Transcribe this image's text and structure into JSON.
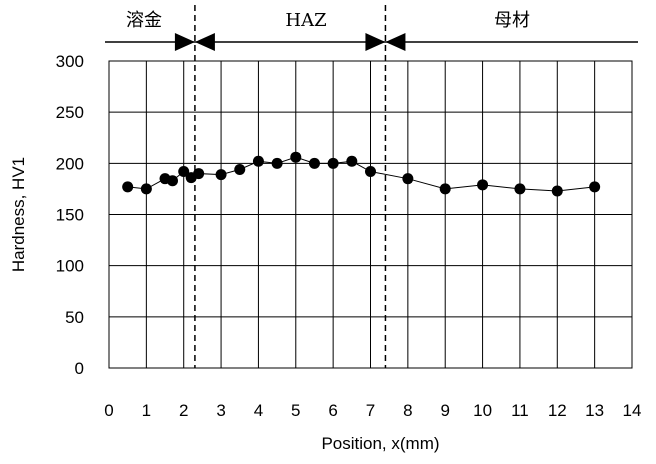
{
  "chart_data": {
    "type": "line",
    "xlabel": "Position, x(mm)",
    "ylabel": "Hardness, HV1",
    "xlim": [
      0,
      14
    ],
    "ylim": [
      0,
      300
    ],
    "x_ticks": [
      "0",
      "1",
      "2",
      "3",
      "4",
      "5",
      "6",
      "7",
      "8",
      "9",
      "10",
      "11",
      "12",
      "13",
      "14"
    ],
    "y_ticks": [
      "0",
      "50",
      "100",
      "150",
      "200",
      "250",
      "300"
    ],
    "grid": true,
    "legend": "none",
    "series": [
      {
        "x": [
          0.5,
          1.0,
          1.5,
          1.7,
          2.0,
          2.2,
          2.4,
          3.0,
          3.5,
          4.0,
          4.5,
          5.0,
          5.5,
          6.0,
          6.5,
          7.0,
          8.0,
          9.0,
          10.0,
          11.0,
          12.0,
          13.0
        ],
        "y": [
          177,
          175,
          185,
          183,
          192,
          186,
          190,
          189,
          194,
          202,
          200,
          206,
          200,
          200,
          202,
          192,
          185,
          175,
          179,
          175,
          173,
          177
        ]
      }
    ],
    "boundaries": [
      2.3,
      7.4
    ],
    "regions": [
      {
        "label": "溶金",
        "from": 0,
        "to": 2.3
      },
      {
        "label": "HAZ",
        "from": 2.3,
        "to": 7.4
      },
      {
        "label": "母材",
        "from": 7.4,
        "to": 14
      }
    ],
    "colors": {
      "marker": "#000000",
      "line": "#000000",
      "grid": "#000000"
    }
  }
}
